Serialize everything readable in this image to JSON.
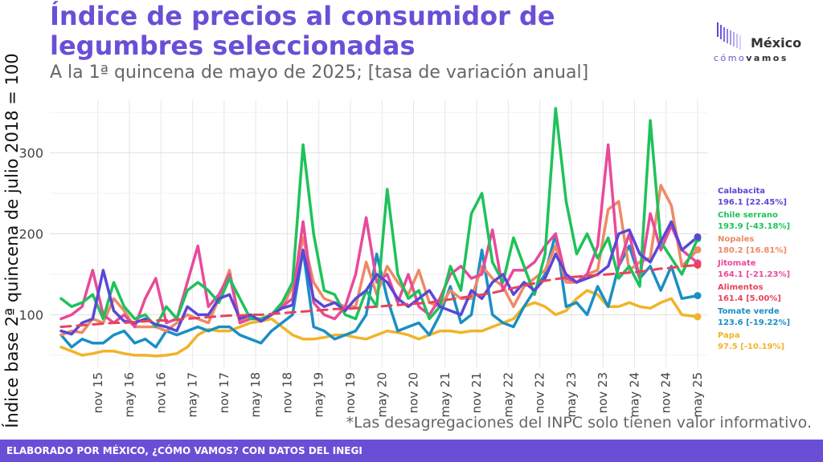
{
  "header": {
    "title": "Índice de precios al consumidor de legumbres seleccionadas",
    "subtitle": "A la 1ª quincena de mayo de 2025; [tasa de variación anual]"
  },
  "logo": {
    "top": "México",
    "bottom_light": "cómo",
    "bottom_bold": "vamos"
  },
  "footnote": "*Las desagregaciones del INPC solo tienen valor informativo.",
  "footer": {
    "text": "ELABORADO POR MÉXICO, ¿CÓMO VAMOS? CON DATOS DEL INEGI"
  },
  "chart_data": {
    "type": "line",
    "title": "Índice de precios al consumidor de legumbres seleccionadas",
    "subtitle": "A la 1ª quincena de mayo de 2025; [tasa de variación anual]",
    "xlabel": "",
    "ylabel": "Índice base 2ª quincena de julio 2018 = 100",
    "ylim": [
      35,
      365
    ],
    "yticks": [
      100,
      200,
      300
    ],
    "grid": true,
    "legend_placement": "right",
    "x_tick_labels": [
      "nov 15",
      "may 16",
      "nov 16",
      "may 17",
      "nov 17",
      "may 18",
      "nov 18",
      "may 19",
      "nov 19",
      "may 20",
      "nov 20",
      "may 21",
      "nov 21",
      "may 22",
      "nov 22",
      "may 23",
      "nov 23",
      "may 24",
      "nov 24",
      "may 25"
    ],
    "x": [
      "2015-04",
      "2015-06",
      "2015-08",
      "2015-10",
      "2015-12",
      "2016-02",
      "2016-04",
      "2016-06",
      "2016-08",
      "2016-10",
      "2016-12",
      "2017-02",
      "2017-04",
      "2017-06",
      "2017-08",
      "2017-10",
      "2017-12",
      "2018-02",
      "2018-04",
      "2018-06",
      "2018-08",
      "2018-10",
      "2018-12",
      "2019-02",
      "2019-04",
      "2019-06",
      "2019-08",
      "2019-10",
      "2019-12",
      "2020-02",
      "2020-04",
      "2020-06",
      "2020-08",
      "2020-10",
      "2020-12",
      "2021-02",
      "2021-04",
      "2021-06",
      "2021-08",
      "2021-10",
      "2021-12",
      "2022-02",
      "2022-04",
      "2022-06",
      "2022-08",
      "2022-10",
      "2022-12",
      "2023-02",
      "2023-04",
      "2023-06",
      "2023-08",
      "2023-10",
      "2023-12",
      "2024-02",
      "2024-04",
      "2024-06",
      "2024-08",
      "2024-10",
      "2024-12",
      "2025-02",
      "2025-05"
    ],
    "series": [
      {
        "name": "Calabacita",
        "label_value": "196.1 [22.45%]",
        "color": "#5a47d6",
        "values": [
          80,
          76,
          90,
          95,
          155,
          105,
          92,
          90,
          95,
          88,
          85,
          80,
          110,
          100,
          100,
          120,
          125,
          95,
          100,
          92,
          100,
          108,
          112,
          180,
          120,
          110,
          115,
          105,
          120,
          130,
          150,
          140,
          120,
          110,
          120,
          130,
          110,
          105,
          100,
          130,
          120,
          140,
          150,
          125,
          140,
          130,
          145,
          175,
          150,
          140,
          145,
          150,
          160,
          200,
          205,
          175,
          165,
          190,
          215,
          180,
          196.1
        ]
      },
      {
        "name": "Chile serrano",
        "label_value": "193.9 [-43.18%]",
        "color": "#1ec25a",
        "values": [
          120,
          110,
          115,
          125,
          95,
          140,
          110,
          95,
          100,
          85,
          110,
          95,
          130,
          140,
          130,
          115,
          145,
          120,
          95,
          95,
          100,
          115,
          140,
          310,
          200,
          130,
          125,
          100,
          95,
          130,
          110,
          255,
          150,
          120,
          130,
          95,
          110,
          160,
          130,
          225,
          250,
          165,
          140,
          195,
          160,
          125,
          175,
          355,
          240,
          175,
          200,
          170,
          195,
          145,
          160,
          135,
          340,
          190,
          170,
          150,
          193.9
        ]
      },
      {
        "name": "Nopales",
        "label_value": "180.2 [16.81%]",
        "color": "#ee8a66",
        "values": [
          75,
          80,
          78,
          95,
          90,
          120,
          105,
          85,
          85,
          85,
          80,
          90,
          100,
          95,
          90,
          120,
          155,
          90,
          100,
          92,
          100,
          108,
          135,
          195,
          140,
          120,
          115,
          110,
          110,
          165,
          125,
          160,
          140,
          125,
          155,
          115,
          110,
          130,
          120,
          120,
          160,
          145,
          135,
          110,
          135,
          145,
          155,
          185,
          140,
          140,
          150,
          155,
          230,
          240,
          155,
          165,
          170,
          260,
          235,
          160,
          180.2
        ]
      },
      {
        "name": "Jitomate",
        "label_value": "164.1 [-21.23%]",
        "color": "#e84a9a",
        "values": [
          95,
          100,
          110,
          155,
          100,
          90,
          100,
          85,
          120,
          145,
          90,
          95,
          140,
          185,
          110,
          125,
          150,
          90,
          95,
          95,
          100,
          110,
          120,
          215,
          115,
          100,
          95,
          110,
          150,
          220,
          140,
          150,
          115,
          150,
          110,
          100,
          120,
          150,
          160,
          145,
          150,
          205,
          130,
          155,
          155,
          165,
          185,
          200,
          145,
          140,
          150,
          185,
          310,
          160,
          200,
          145,
          225,
          180,
          210,
          180,
          164.1
        ]
      },
      {
        "name": "Alimentos",
        "label_value": "161.4 [5.00%]",
        "color": "#e8435a",
        "dashed": true,
        "values": [
          85,
          86,
          87,
          88,
          89,
          90,
          90,
          91,
          92,
          93,
          93,
          94,
          95,
          96,
          97,
          98,
          99,
          99,
          100,
          100,
          101,
          102,
          103,
          104,
          105,
          106,
          107,
          107,
          108,
          109,
          110,
          111,
          112,
          113,
          114,
          115,
          117,
          119,
          121,
          123,
          125,
          127,
          130,
          133,
          136,
          139,
          142,
          144,
          146,
          147,
          148,
          149,
          150,
          151,
          152,
          153,
          155,
          157,
          158,
          160,
          161.4
        ]
      },
      {
        "name": "Tomate verde",
        "label_value": "123.6 [-19.22%]",
        "color": "#1a8fc4",
        "values": [
          75,
          60,
          70,
          65,
          65,
          75,
          80,
          65,
          70,
          60,
          80,
          75,
          80,
          85,
          80,
          85,
          85,
          75,
          70,
          65,
          80,
          90,
          100,
          180,
          85,
          80,
          70,
          75,
          80,
          100,
          175,
          120,
          80,
          85,
          90,
          75,
          100,
          135,
          90,
          100,
          180,
          100,
          90,
          85,
          110,
          130,
          150,
          200,
          110,
          115,
          100,
          135,
          110,
          160,
          185,
          145,
          160,
          130,
          160,
          120,
          123.6
        ]
      },
      {
        "name": "Papa",
        "label_value": "97.5 [-10.19%]",
        "color": "#f0b429",
        "values": [
          60,
          55,
          50,
          52,
          55,
          55,
          52,
          50,
          50,
          49,
          50,
          52,
          60,
          75,
          82,
          80,
          80,
          85,
          90,
          92,
          95,
          85,
          75,
          70,
          70,
          72,
          75,
          75,
          72,
          70,
          75,
          80,
          78,
          75,
          70,
          75,
          80,
          80,
          78,
          80,
          80,
          85,
          90,
          95,
          110,
          115,
          110,
          100,
          105,
          120,
          130,
          125,
          110,
          110,
          115,
          110,
          108,
          115,
          120,
          100,
          97.5
        ]
      }
    ]
  }
}
